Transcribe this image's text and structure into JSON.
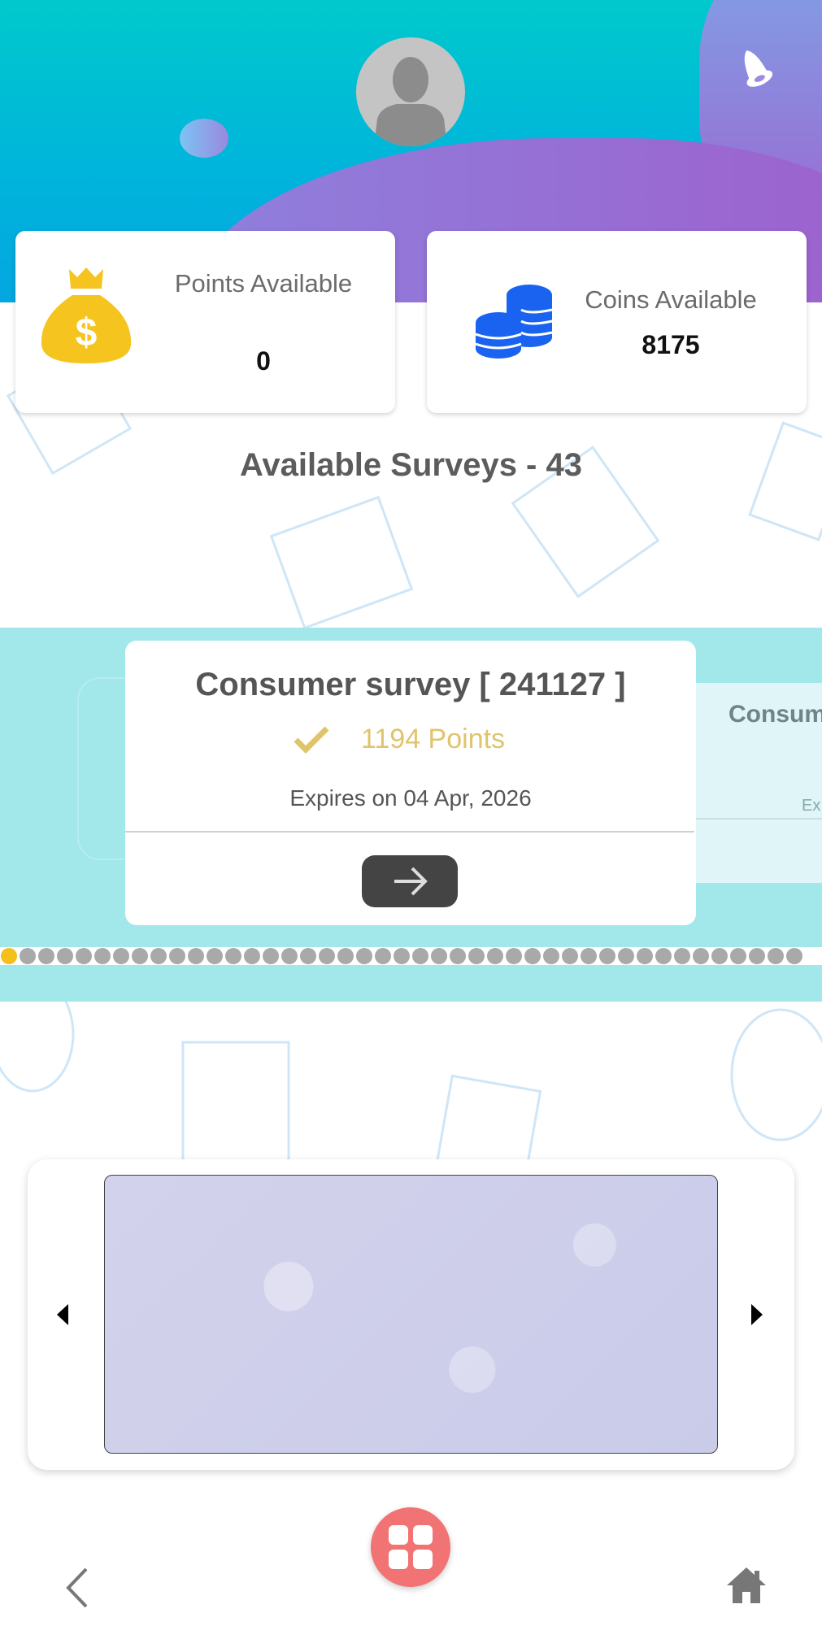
{
  "header": {
    "avatar_icon": "user-silhouette-icon",
    "bell_icon": "bell-icon"
  },
  "stats": {
    "points": {
      "label": "Points Available",
      "value": "0",
      "icon": "money-bag-icon"
    },
    "coins": {
      "label": "Coins Available",
      "value": "8175",
      "icon": "coins-stack-icon"
    }
  },
  "surveys": {
    "title": "Available Surveys - 43",
    "current": {
      "name": "Consumer survey [ 241127 ]",
      "points": "1194 Points",
      "expires": "Expires on 04 Apr, 2026"
    },
    "next_peek": {
      "name": "Consum",
      "expires": "Ex"
    },
    "page_count": 43,
    "active_page": 1,
    "colors": {
      "band": "#a2e8ea",
      "points": "#e0c46c",
      "active_dot": "#f5bf1c",
      "dot": "#a9a9a9"
    }
  },
  "nav": {
    "back_icon": "chevron-left-icon",
    "menu_icon": "grid-icon",
    "home_icon": "home-icon",
    "fab_color": "#f27373"
  }
}
